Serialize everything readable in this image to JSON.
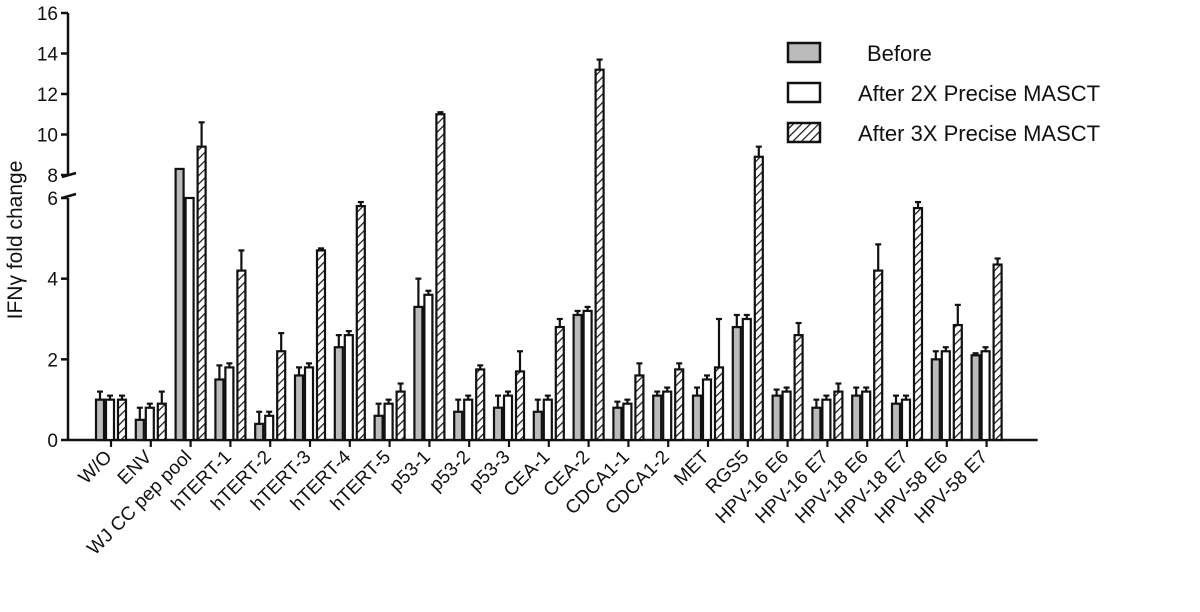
{
  "chart_data": {
    "type": "bar",
    "ylabel": "IFNγ fold change",
    "ylim": [
      0,
      16
    ],
    "axis_break": {
      "from": 6,
      "to": 8
    },
    "y_ticks_lower": [
      0,
      2,
      4,
      6
    ],
    "y_ticks_upper": [
      8,
      10,
      12,
      14,
      16
    ],
    "legend_position": "top-right",
    "categories": [
      "W/O",
      "ENV",
      "WJ CC pep pool",
      "hTERT-1",
      "hTERT-2",
      "hTERT-3",
      "hTERT-4",
      "hTERT-5",
      "p53-1",
      "p53-2",
      "p53-3",
      "CEA-1",
      "CEA-2",
      "CDCA1-1",
      "CDCA1-2",
      "MET",
      "RGS5",
      "HPV-16 E6",
      "HPV-16 E7",
      "HPV-18 E6",
      "HPV-18 E7",
      "HPV-58 E6",
      "HPV-58 E7"
    ],
    "series": [
      {
        "name": "Before",
        "fill": "#bbbbbb",
        "values": [
          1.0,
          0.5,
          8.3,
          1.5,
          0.4,
          1.6,
          2.3,
          0.6,
          3.3,
          0.7,
          0.8,
          0.7,
          3.1,
          0.8,
          1.1,
          1.1,
          2.8,
          1.1,
          0.8,
          1.1,
          0.9,
          2.0,
          2.1
        ],
        "errors": [
          0.2,
          0.3,
          0.0,
          0.35,
          0.3,
          0.2,
          0.3,
          0.3,
          0.7,
          0.3,
          0.3,
          0.3,
          0.1,
          0.15,
          0.1,
          0.2,
          0.3,
          0.15,
          0.2,
          0.2,
          0.2,
          0.2,
          0.05
        ]
      },
      {
        "name": "After 2X Precise MASCT",
        "fill": "#ffffff",
        "values": [
          1.0,
          0.8,
          7.9,
          1.8,
          0.6,
          1.8,
          2.6,
          0.9,
          3.6,
          1.0,
          1.1,
          1.0,
          3.2,
          0.9,
          1.2,
          1.5,
          3.0,
          1.2,
          1.0,
          1.2,
          1.0,
          2.2,
          2.2
        ],
        "errors": [
          0.1,
          0.1,
          0.0,
          0.1,
          0.1,
          0.1,
          0.1,
          0.1,
          0.1,
          0.1,
          0.1,
          0.1,
          0.1,
          0.1,
          0.1,
          0.1,
          0.1,
          0.1,
          0.1,
          0.1,
          0.1,
          0.1,
          0.1
        ]
      },
      {
        "name": "After 3X Precise MASCT",
        "fill": "hatch",
        "values": [
          1.0,
          0.9,
          9.4,
          4.2,
          2.2,
          4.7,
          5.8,
          1.2,
          11.0,
          1.75,
          1.7,
          2.8,
          13.2,
          1.6,
          1.75,
          1.8,
          8.9,
          2.6,
          1.2,
          4.2,
          5.75,
          2.85,
          4.35
        ],
        "errors": [
          0.1,
          0.3,
          1.2,
          0.5,
          0.45,
          0.05,
          0.1,
          0.2,
          0.1,
          0.1,
          0.5,
          0.2,
          0.5,
          0.3,
          0.15,
          1.2,
          0.5,
          0.3,
          0.2,
          0.65,
          0.15,
          0.5,
          0.15
        ]
      }
    ]
  }
}
